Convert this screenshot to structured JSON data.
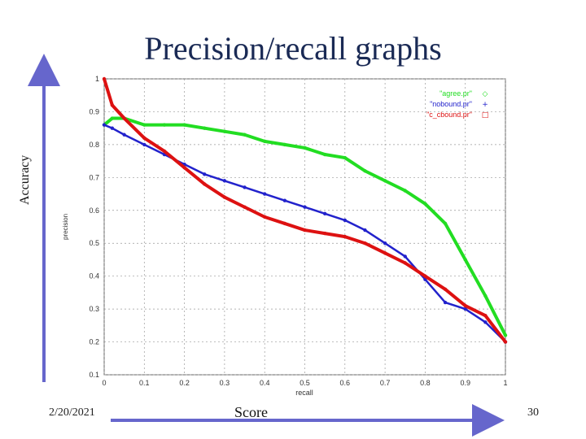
{
  "slide": {
    "title": "Precision/recall graphs",
    "date": "2/20/2021",
    "page_number": "30",
    "accuracy_label": "Accuracy",
    "score_label": "Score"
  },
  "colors": {
    "green": "#22dd22",
    "blue": "#2222cc",
    "red": "#dd1111",
    "arrow": "#6666cc",
    "grid": "#999999"
  },
  "chart_data": {
    "type": "line",
    "xlabel": "recall",
    "ylabel": "precision",
    "xlim": [
      0,
      1
    ],
    "ylim": [
      0.1,
      1
    ],
    "xticks": [
      "0",
      "0.1",
      "0.2",
      "0.3",
      "0.4",
      "0.5",
      "0.6",
      "0.7",
      "0.8",
      "0.9",
      "1"
    ],
    "yticks": [
      "0.1",
      "0.2",
      "0.3",
      "0.4",
      "0.5",
      "0.6",
      "0.7",
      "0.8",
      "0.9",
      "1"
    ],
    "grid": true,
    "legend_position": "top-right",
    "series": [
      {
        "name": "\"agree.pr\"",
        "marker": "◇",
        "color": "#22dd22",
        "x": [
          0.0,
          0.02,
          0.05,
          0.1,
          0.15,
          0.2,
          0.25,
          0.3,
          0.35,
          0.4,
          0.45,
          0.5,
          0.55,
          0.6,
          0.65,
          0.7,
          0.75,
          0.8,
          0.85,
          0.9,
          0.95,
          1.0
        ],
        "y": [
          0.86,
          0.88,
          0.88,
          0.86,
          0.86,
          0.86,
          0.85,
          0.84,
          0.83,
          0.81,
          0.8,
          0.79,
          0.77,
          0.76,
          0.72,
          0.69,
          0.66,
          0.62,
          0.56,
          0.45,
          0.34,
          0.22
        ]
      },
      {
        "name": "\"nobound.pr\"",
        "marker": "+",
        "color": "#2222cc",
        "x": [
          0.0,
          0.02,
          0.05,
          0.1,
          0.15,
          0.2,
          0.25,
          0.3,
          0.35,
          0.4,
          0.45,
          0.5,
          0.55,
          0.6,
          0.65,
          0.7,
          0.75,
          0.8,
          0.85,
          0.9,
          0.95,
          1.0
        ],
        "y": [
          0.86,
          0.85,
          0.83,
          0.8,
          0.77,
          0.74,
          0.71,
          0.69,
          0.67,
          0.65,
          0.63,
          0.61,
          0.59,
          0.57,
          0.54,
          0.5,
          0.46,
          0.39,
          0.32,
          0.3,
          0.26,
          0.2
        ]
      },
      {
        "name": "\"c_cbound.pr\"",
        "marker": "□",
        "color": "#dd1111",
        "x": [
          0.0,
          0.02,
          0.05,
          0.1,
          0.15,
          0.2,
          0.25,
          0.3,
          0.35,
          0.4,
          0.45,
          0.5,
          0.55,
          0.6,
          0.65,
          0.7,
          0.75,
          0.8,
          0.85,
          0.9,
          0.95,
          1.0
        ],
        "y": [
          1.0,
          0.92,
          0.88,
          0.82,
          0.78,
          0.73,
          0.68,
          0.64,
          0.61,
          0.58,
          0.56,
          0.54,
          0.53,
          0.52,
          0.5,
          0.47,
          0.44,
          0.4,
          0.36,
          0.31,
          0.28,
          0.2
        ]
      }
    ]
  }
}
